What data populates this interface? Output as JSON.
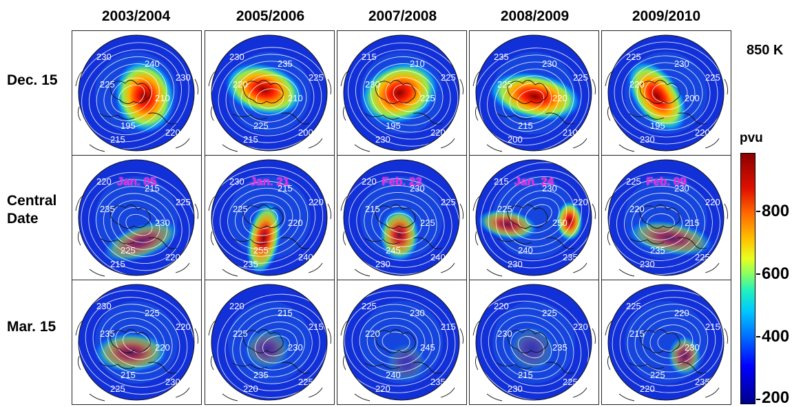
{
  "columns": [
    "2003/2004",
    "2005/2006",
    "2007/2008",
    "2008/2009",
    "2009/2010"
  ],
  "rows": [
    "Dec. 15",
    "Central\nDate",
    "Mar. 15"
  ],
  "level": "850 K",
  "unit": "pvu",
  "colorbar_ticks": [
    "800",
    "600",
    "400",
    "200"
  ],
  "central_dates": [
    "Jan. 05",
    "Jan. 21",
    "Feb. 23",
    "Jan. 24",
    "Feb. 09"
  ],
  "contour_labels": [
    [
      "230",
      "240",
      "225",
      "210",
      "195",
      "220",
      "215",
      "230"
    ],
    [
      "230",
      "235",
      "220",
      "210",
      "225",
      "200",
      "215",
      "225"
    ],
    [
      "215",
      "210",
      "230",
      "225",
      "195",
      "220",
      "230",
      "225"
    ],
    [
      "235",
      "230",
      "225",
      "220",
      "215",
      "210",
      "200",
      "225"
    ],
    [
      "225",
      "230",
      "220",
      "200",
      "195",
      "220",
      "230",
      "225"
    ],
    [
      "220",
      "215",
      "235",
      "230",
      "225",
      "220",
      "215",
      "225"
    ],
    [
      "230",
      "215",
      "225",
      "220",
      "255",
      "240",
      "235",
      "220"
    ],
    [
      "220",
      "230",
      "215",
      "225",
      "245",
      "240",
      "230",
      "225"
    ],
    [
      "215",
      "230",
      "225",
      "250",
      "240",
      "235",
      "230",
      "220"
    ],
    [
      "225",
      "230",
      "220",
      "215",
      "235",
      "225",
      "230",
      "220"
    ],
    [
      "230",
      "225",
      "235",
      "220",
      "215",
      "230",
      "225",
      "220"
    ],
    [
      "220",
      "215",
      "225",
      "230",
      "235",
      "225",
      "220",
      "215"
    ],
    [
      "225",
      "230",
      "220",
      "245",
      "240",
      "235",
      "220",
      "215"
    ],
    [
      "220",
      "225",
      "230",
      "235",
      "215",
      "225",
      "230",
      "220"
    ],
    [
      "225",
      "220",
      "215",
      "230",
      "225",
      "235",
      "220",
      "215"
    ]
  ],
  "colors": {
    "low": "#00008b",
    "high": "#8b0000",
    "date_label": "#ff22dd"
  }
}
